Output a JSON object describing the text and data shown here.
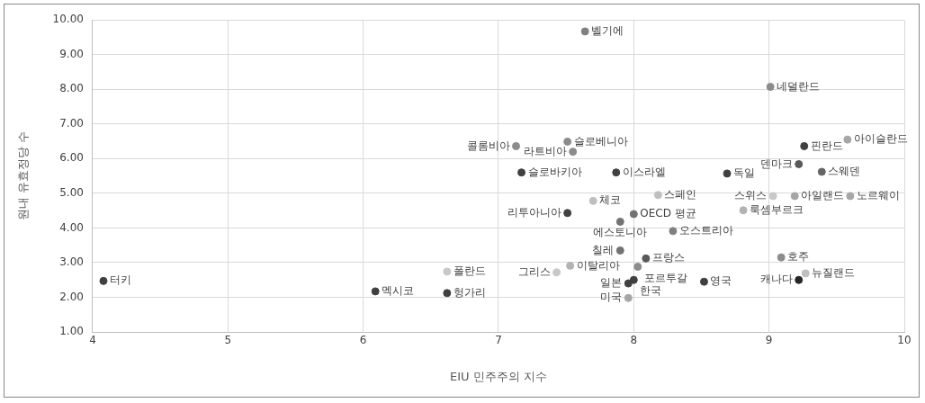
{
  "chart_data": {
    "type": "scatter",
    "xlabel": "EIU 민주주의 지수",
    "ylabel": "원내 유효정당 수",
    "xlim": [
      4,
      10
    ],
    "xticks": [
      4,
      5,
      6,
      7,
      8,
      9,
      10
    ],
    "ylim": [
      1,
      10
    ],
    "yticks": [
      {
        "value": 1,
        "label": "1.00"
      },
      {
        "value": 2,
        "label": "2.00"
      },
      {
        "value": 3,
        "label": "3.00"
      },
      {
        "value": 4,
        "label": "4.00"
      },
      {
        "value": 5,
        "label": "5.00"
      },
      {
        "value": 6,
        "label": "6.00"
      },
      {
        "value": 7,
        "label": "7.00"
      },
      {
        "value": 8,
        "label": "8.00"
      },
      {
        "value": 9,
        "label": "9.00"
      },
      {
        "value": 10,
        "label": "10.00"
      }
    ],
    "grid": true,
    "legend": false,
    "marker": "circle",
    "x": [
      7.64,
      9.01,
      9.58,
      9.26,
      9.22,
      9.39,
      7.13,
      7.51,
      7.55,
      7.17,
      7.87,
      8.69,
      7.7,
      8.18,
      7.51,
      7.9,
      8.0,
      8.29,
      8.81,
      9.03,
      9.19,
      9.6,
      7.9,
      8.09,
      7.53,
      7.43,
      8.03,
      8.0,
      7.96,
      7.96,
      8.52,
      9.09,
      9.27,
      9.22,
      6.62,
      6.09,
      6.62,
      4.08
    ],
    "values": [
      9.67,
      8.07,
      6.55,
      6.36,
      5.84,
      5.62,
      6.36,
      6.49,
      6.2,
      5.6,
      5.6,
      5.57,
      4.78,
      4.95,
      4.43,
      4.18,
      4.4,
      3.91,
      4.51,
      4.92,
      4.92,
      4.92,
      3.35,
      3.12,
      2.91,
      2.72,
      2.88,
      2.5,
      2.4,
      1.98,
      2.45,
      3.15,
      2.69,
      2.5,
      2.74,
      2.17,
      2.12,
      2.47
    ],
    "colors": [
      "#808080",
      "#8c8c8c",
      "#a6a6a6",
      "#404040",
      "#595959",
      "#666666",
      "#8c8c8c",
      "#8c8c8c",
      "#8c8c8c",
      "#404040",
      "#404040",
      "#404040",
      "#bfbfbf",
      "#bfbfbf",
      "#404040",
      "#737373",
      "#737373",
      "#808080",
      "#b3b3b3",
      "#c8c8c8",
      "#a6a6a6",
      "#a6a6a6",
      "#737373",
      "#595959",
      "#b3b3b3",
      "#c8c8c8",
      "#8c8c8c",
      "#404040",
      "#404040",
      "#a6a6a6",
      "#404040",
      "#8c8c8c",
      "#bfbfbf",
      "#262626",
      "#c8c8c8",
      "#404040",
      "#404040",
      "#404040"
    ],
    "annotations": [
      {
        "text": "벨기에",
        "x": 7.64,
        "y": 9.67
      },
      {
        "text": "네덜란드",
        "x": 9.01,
        "y": 8.07
      },
      {
        "text": "아이슬란드",
        "x": 9.58,
        "y": 6.55
      },
      {
        "text": "핀란드",
        "x": 9.26,
        "y": 6.36
      },
      {
        "text": "덴마크",
        "x": 9.22,
        "y": 5.84
      },
      {
        "text": "스웨덴",
        "x": 9.39,
        "y": 5.62
      },
      {
        "text": "콜롬비아",
        "x": 7.13,
        "y": 6.36
      },
      {
        "text": "슬로베니아",
        "x": 7.51,
        "y": 6.49
      },
      {
        "text": "라트비아",
        "x": 7.55,
        "y": 6.2
      },
      {
        "text": "슬로바키아",
        "x": 7.17,
        "y": 5.6
      },
      {
        "text": "이스라엘",
        "x": 7.87,
        "y": 5.6
      },
      {
        "text": "독일",
        "x": 8.69,
        "y": 5.57
      },
      {
        "text": "체코",
        "x": 7.7,
        "y": 4.78
      },
      {
        "text": "스페인",
        "x": 8.18,
        "y": 4.95
      },
      {
        "text": "리투아니아",
        "x": 7.51,
        "y": 4.43
      },
      {
        "text": "에스토니아",
        "x": 7.9,
        "y": 4.18
      },
      {
        "text": "OECD 평균",
        "x": 8.0,
        "y": 4.4
      },
      {
        "text": "오스트리아",
        "x": 8.29,
        "y": 3.91
      },
      {
        "text": "룩셈부르크",
        "x": 8.81,
        "y": 4.51
      },
      {
        "text": "스위스",
        "x": 9.03,
        "y": 4.92
      },
      {
        "text": "아일랜드",
        "x": 9.19,
        "y": 4.92
      },
      {
        "text": "노르웨이",
        "x": 9.6,
        "y": 4.92
      },
      {
        "text": "칠레",
        "x": 7.9,
        "y": 3.35
      },
      {
        "text": "프랑스",
        "x": 8.09,
        "y": 3.12
      },
      {
        "text": "이탈리아",
        "x": 7.53,
        "y": 2.91
      },
      {
        "text": "그리스",
        "x": 7.43,
        "y": 2.72
      },
      {
        "text": "포르투갈",
        "x": 8.03,
        "y": 2.88
      },
      {
        "text": "한국",
        "x": 8.0,
        "y": 2.5
      },
      {
        "text": "일본",
        "x": 7.96,
        "y": 2.4
      },
      {
        "text": "미국",
        "x": 7.96,
        "y": 1.98
      },
      {
        "text": "영국",
        "x": 8.52,
        "y": 2.45
      },
      {
        "text": "호주",
        "x": 9.09,
        "y": 3.15
      },
      {
        "text": "뉴질랜드",
        "x": 9.27,
        "y": 2.69
      },
      {
        "text": "캐나다",
        "x": 9.22,
        "y": 2.5
      },
      {
        "text": "폴란드",
        "x": 6.62,
        "y": 2.74
      },
      {
        "text": "멕시코",
        "x": 6.09,
        "y": 2.17
      },
      {
        "text": "헝가리",
        "x": 6.62,
        "y": 2.12
      },
      {
        "text": "터키",
        "x": 4.08,
        "y": 2.47
      }
    ]
  }
}
